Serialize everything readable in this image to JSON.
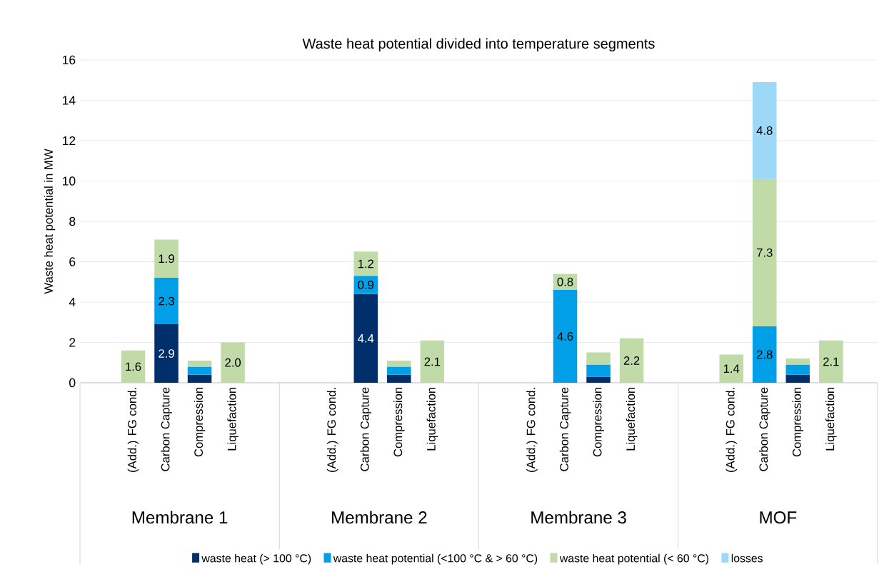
{
  "chart_data": {
    "type": "bar",
    "title": "Waste heat potential divided into temperature segments",
    "ylabel": "Waste heat potential in MW",
    "categories": [
      "(Add.) FG cond.",
      "Carbon Capture",
      "Compression",
      "Liquefaction",
      "(Add.) FG cond.",
      "Carbon Capture",
      "Compression",
      "Liquefaction",
      "(Add.) FG cond.",
      "Carbon Capture",
      "Compression",
      "Liquefaction",
      "(Add.) FG cond.",
      "Carbon Capture",
      "Compression",
      "Liquefaction"
    ],
    "annotations": [
      "Membrane 1",
      "Membrane 2",
      "Membrane 3",
      "MOF"
    ],
    "stacked": true,
    "series": [
      {
        "name": "waste heat (> 100 °C)",
        "color": "#002f6c",
        "values": [
          null,
          2.9,
          0.4,
          null,
          null,
          4.4,
          0.4,
          null,
          null,
          null,
          0.3,
          null,
          null,
          null,
          0.4,
          null
        ],
        "value_labels": [
          null,
          "2.9",
          null,
          null,
          null,
          "4.4",
          null,
          null,
          null,
          null,
          null,
          null,
          null,
          null,
          null,
          null
        ]
      },
      {
        "name": "waste heat potential (<100 °C & > 60 °C)",
        "color": "#009fe8",
        "values": [
          null,
          2.3,
          0.4,
          null,
          null,
          0.9,
          0.4,
          null,
          null,
          4.6,
          0.6,
          null,
          null,
          2.8,
          0.5,
          null
        ],
        "value_labels": [
          null,
          "2.3",
          null,
          null,
          null,
          "0.9",
          null,
          null,
          null,
          "4.6",
          null,
          null,
          null,
          "2.8",
          null,
          null
        ]
      },
      {
        "name": "waste heat potential (< 60 °C)",
        "color": "#c0dba8",
        "values": [
          1.6,
          1.9,
          0.3,
          2.0,
          null,
          1.2,
          0.3,
          2.1,
          null,
          0.8,
          0.6,
          2.2,
          1.4,
          7.3,
          0.3,
          2.1
        ],
        "value_labels": [
          "1.6",
          "1.9",
          null,
          "2.0",
          null,
          "1.2",
          null,
          "2.1",
          null,
          "0.8",
          null,
          "2.2",
          "1.4",
          "7.3",
          null,
          "2.1"
        ]
      },
      {
        "name": "losses",
        "color": "#9dd8f7",
        "values": [
          null,
          null,
          null,
          null,
          null,
          null,
          null,
          null,
          null,
          null,
          null,
          null,
          null,
          4.8,
          null,
          null
        ],
        "value_labels": [
          null,
          null,
          null,
          null,
          null,
          null,
          null,
          null,
          null,
          null,
          null,
          null,
          null,
          "4.8",
          null,
          null
        ]
      }
    ],
    "ylim": [
      0,
      16
    ],
    "yticks": [
      0,
      2,
      4,
      6,
      8,
      10,
      12,
      14,
      16
    ],
    "grid": "y",
    "legend": "bottom"
  }
}
